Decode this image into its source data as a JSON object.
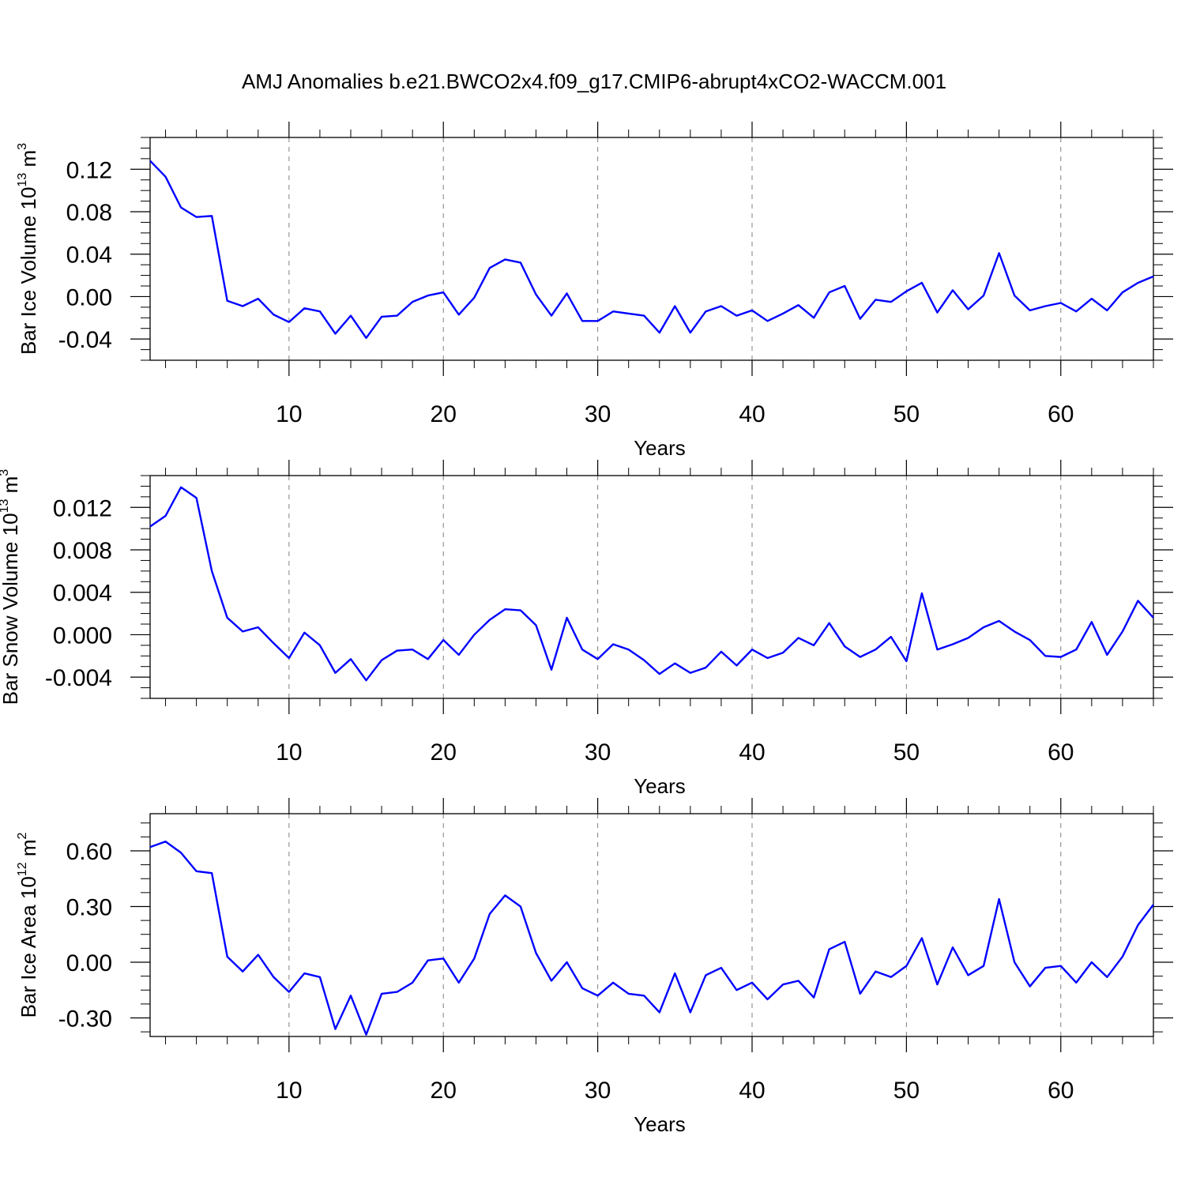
{
  "title": "AMJ Anomalies b.e21.BWCO2x4.f09_g17.CMIP6-abrupt4xCO2-WACCM.001",
  "colors": {
    "line": "#0000ff",
    "axis": "#000000",
    "grid": "#808080",
    "background": "#ffffff"
  },
  "chart_data": [
    {
      "type": "line",
      "ylabel": {
        "text": "Bar Ice Volume 10",
        "exponent": "13",
        "unit": " m",
        "unit_exponent": "3"
      },
      "xlabel": "Years",
      "xlim": [
        1,
        66
      ],
      "ylim": [
        -0.06,
        0.15
      ],
      "yticks": [
        -0.04,
        0.0,
        0.04,
        0.08,
        0.12
      ],
      "ytick_labels": [
        "-0.04",
        "0.00",
        "0.04",
        "0.08",
        "0.12"
      ],
      "xticks": [
        10,
        20,
        30,
        40,
        50,
        60
      ],
      "xtick_labels": [
        "10",
        "20",
        "30",
        "40",
        "50",
        "60"
      ],
      "x": [
        1,
        2,
        3,
        4,
        5,
        6,
        7,
        8,
        9,
        10,
        11,
        12,
        13,
        14,
        15,
        16,
        17,
        18,
        19,
        20,
        21,
        22,
        23,
        24,
        25,
        26,
        27,
        28,
        29,
        30,
        31,
        32,
        33,
        34,
        35,
        36,
        37,
        38,
        39,
        40,
        41,
        42,
        43,
        44,
        45,
        46,
        47,
        48,
        49,
        50,
        51,
        52,
        53,
        54,
        55,
        56,
        57,
        58,
        59,
        60,
        61,
        62,
        63,
        64,
        65,
        66
      ],
      "series": [
        {
          "name": "Bar Ice Volume",
          "values": [
            0.128,
            0.113,
            0.084,
            0.075,
            0.076,
            -0.004,
            -0.009,
            -0.002,
            -0.017,
            -0.024,
            -0.011,
            -0.014,
            -0.035,
            -0.018,
            -0.039,
            -0.019,
            -0.018,
            -0.005,
            0.001,
            0.004,
            -0.017,
            -0.001,
            0.027,
            0.035,
            0.032,
            0.002,
            -0.018,
            0.003,
            -0.023,
            -0.023,
            -0.014,
            -0.016,
            -0.018,
            -0.034,
            -0.009,
            -0.034,
            -0.014,
            -0.009,
            -0.018,
            -0.013,
            -0.023,
            -0.016,
            -0.008,
            -0.02,
            0.004,
            0.01,
            -0.021,
            -0.003,
            -0.005,
            0.005,
            0.013,
            -0.015,
            0.006,
            -0.012,
            0.001,
            0.041,
            0.001,
            -0.013,
            -0.009,
            -0.006,
            -0.014,
            -0.002,
            -0.013,
            0.004,
            0.013,
            0.019
          ]
        }
      ]
    },
    {
      "type": "line",
      "ylabel": {
        "text": "Bar Snow Volume 10",
        "exponent": "13",
        "unit": " m",
        "unit_exponent": "3"
      },
      "xlabel": "Years",
      "xlim": [
        1,
        66
      ],
      "ylim": [
        -0.006,
        0.015
      ],
      "yticks": [
        -0.004,
        0.0,
        0.004,
        0.008,
        0.012
      ],
      "ytick_labels": [
        "-0.004",
        "0.000",
        "0.004",
        "0.008",
        "0.012"
      ],
      "xticks": [
        10,
        20,
        30,
        40,
        50,
        60
      ],
      "xtick_labels": [
        "10",
        "20",
        "30",
        "40",
        "50",
        "60"
      ],
      "x": [
        1,
        2,
        3,
        4,
        5,
        6,
        7,
        8,
        9,
        10,
        11,
        12,
        13,
        14,
        15,
        16,
        17,
        18,
        19,
        20,
        21,
        22,
        23,
        24,
        25,
        26,
        27,
        28,
        29,
        30,
        31,
        32,
        33,
        34,
        35,
        36,
        37,
        38,
        39,
        40,
        41,
        42,
        43,
        44,
        45,
        46,
        47,
        48,
        49,
        50,
        51,
        52,
        53,
        54,
        55,
        56,
        57,
        58,
        59,
        60,
        61,
        62,
        63,
        64,
        65,
        66
      ],
      "series": [
        {
          "name": "Bar Snow Volume",
          "values": [
            0.0102,
            0.0112,
            0.0139,
            0.0129,
            0.006,
            0.0016,
            0.0003,
            0.0007,
            -0.0008,
            -0.0022,
            0.0002,
            -0.001,
            -0.0036,
            -0.0023,
            -0.0043,
            -0.0024,
            -0.0015,
            -0.0014,
            -0.0023,
            -0.0005,
            -0.0019,
            0.0,
            0.0014,
            0.0024,
            0.0023,
            0.0009,
            -0.0033,
            0.0016,
            -0.0014,
            -0.0023,
            -0.0009,
            -0.0014,
            -0.0024,
            -0.0037,
            -0.0027,
            -0.0036,
            -0.0031,
            -0.0016,
            -0.0029,
            -0.0014,
            -0.0022,
            -0.0017,
            -0.0003,
            -0.001,
            0.0011,
            -0.0011,
            -0.0021,
            -0.0014,
            -0.0002,
            -0.0025,
            0.0039,
            -0.0014,
            -0.0009,
            -0.0003,
            0.0007,
            0.0013,
            0.0003,
            -0.0005,
            -0.002,
            -0.0021,
            -0.0014,
            0.0012,
            -0.0019,
            0.0003,
            0.0032,
            0.0016
          ]
        }
      ]
    },
    {
      "type": "line",
      "ylabel": {
        "text": "Bar Ice Area 10",
        "exponent": "12",
        "unit": " m",
        "unit_exponent": "2"
      },
      "xlabel": "Years",
      "xlim": [
        1,
        66
      ],
      "ylim": [
        -0.4,
        0.8
      ],
      "yticks": [
        -0.3,
        0.0,
        0.3,
        0.6
      ],
      "ytick_labels": [
        "-0.30",
        "0.00",
        "0.30",
        "0.60"
      ],
      "xticks": [
        10,
        20,
        30,
        40,
        50,
        60
      ],
      "xtick_labels": [
        "10",
        "20",
        "30",
        "40",
        "50",
        "60"
      ],
      "x": [
        1,
        2,
        3,
        4,
        5,
        6,
        7,
        8,
        9,
        10,
        11,
        12,
        13,
        14,
        15,
        16,
        17,
        18,
        19,
        20,
        21,
        22,
        23,
        24,
        25,
        26,
        27,
        28,
        29,
        30,
        31,
        32,
        33,
        34,
        35,
        36,
        37,
        38,
        39,
        40,
        41,
        42,
        43,
        44,
        45,
        46,
        47,
        48,
        49,
        50,
        51,
        52,
        53,
        54,
        55,
        56,
        57,
        58,
        59,
        60,
        61,
        62,
        63,
        64,
        65,
        66
      ],
      "series": [
        {
          "name": "Bar Ice Area",
          "values": [
            0.62,
            0.65,
            0.59,
            0.49,
            0.48,
            0.03,
            -0.05,
            0.04,
            -0.08,
            -0.16,
            -0.06,
            -0.08,
            -0.36,
            -0.18,
            -0.39,
            -0.17,
            -0.16,
            -0.11,
            0.01,
            0.02,
            -0.11,
            0.02,
            0.26,
            0.36,
            0.3,
            0.05,
            -0.1,
            0.0,
            -0.14,
            -0.18,
            -0.11,
            -0.17,
            -0.18,
            -0.27,
            -0.06,
            -0.27,
            -0.07,
            -0.03,
            -0.15,
            -0.11,
            -0.2,
            -0.12,
            -0.1,
            -0.19,
            0.07,
            0.11,
            -0.17,
            -0.05,
            -0.08,
            -0.02,
            0.13,
            -0.12,
            0.08,
            -0.07,
            -0.02,
            0.34,
            0.0,
            -0.13,
            -0.03,
            -0.02,
            -0.11,
            0.0,
            -0.08,
            0.03,
            0.2,
            0.31
          ]
        }
      ]
    }
  ]
}
